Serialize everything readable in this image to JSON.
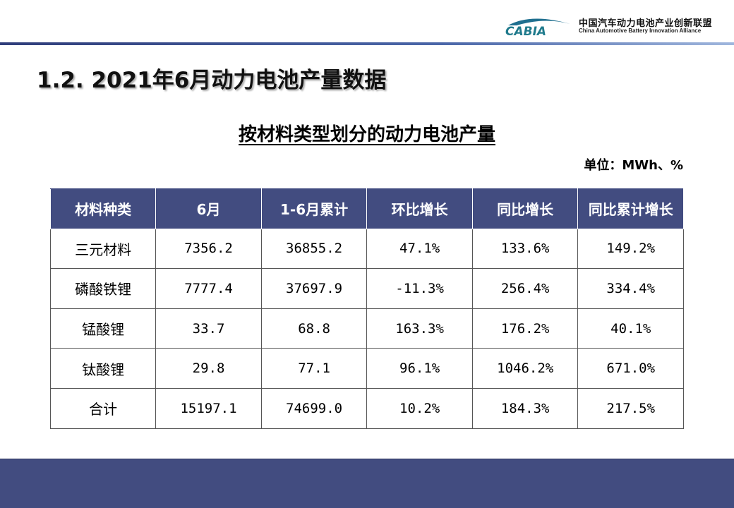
{
  "header": {
    "logo_text": "CABIA",
    "org_name_cn": "中国汽车动力电池产业创新联盟",
    "org_name_en": "China Automotive Battery Innovation Alliance"
  },
  "title": "1.2. 2021年6月动力电池产量数据",
  "subtitle": "按材料类型划分的动力电池产量",
  "unit": "单位：MWh、%",
  "colors": {
    "header_bg": "#424c80",
    "band": "#424c80"
  },
  "table": {
    "columns": [
      "材料种类",
      "6月",
      "1-6月累计",
      "环比增长",
      "同比增长",
      "同比累计增长"
    ],
    "rows": [
      [
        "三元材料",
        "7356.2",
        "36855.2",
        "47.1%",
        "133.6%",
        "149.2%"
      ],
      [
        "磷酸铁锂",
        "7777.4",
        "37697.9",
        "-11.3%",
        "256.4%",
        "334.4%"
      ],
      [
        "锰酸锂",
        "33.7",
        "68.8",
        "163.3%",
        "176.2%",
        "40.1%"
      ],
      [
        "钛酸锂",
        "29.8",
        "77.1",
        "96.1%",
        "1046.2%",
        "671.0%"
      ],
      [
        "合计",
        "15197.1",
        "74699.0",
        "10.2%",
        "184.3%",
        "217.5%"
      ]
    ]
  }
}
